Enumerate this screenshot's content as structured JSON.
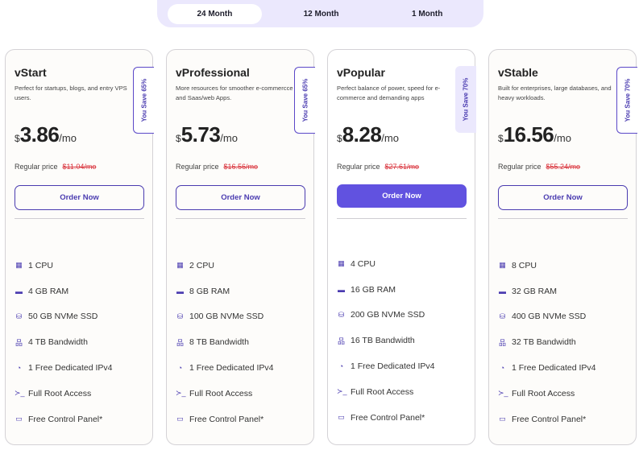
{
  "tabs": [
    "24 Month",
    "12 Month",
    "1 Month"
  ],
  "currency": "$",
  "per": "/mo",
  "regular_label": "Regular price",
  "plans": [
    {
      "name": "vStart",
      "desc": "Perfect for startups, blogs, and entry VPS users.",
      "badge": "You Save 65%",
      "price": "3.86",
      "regular": "$11.04/mo",
      "button": "Order Now",
      "features": [
        "1 CPU",
        "4 GB RAM",
        "50 GB NVMe SSD",
        "4 TB Bandwidth",
        "1 Free Dedicated IPv4",
        "Full Root Access",
        "Free Control Panel*"
      ]
    },
    {
      "name": "vProfessional",
      "desc": "More resources for smoother e-commercce and Saas/web Apps.",
      "badge": "You Save 65%",
      "price": "5.73",
      "regular": "$16.56/mo",
      "button": "Order Now",
      "features": [
        "2 CPU",
        "8 GB RAM",
        "100 GB NVMe SSD",
        "8 TB Bandwidth",
        "1 Free Dedicated IPv4",
        "Full Root Access",
        "Free Control Panel*"
      ]
    },
    {
      "name": "vPopular",
      "desc": "Perfect balance of power, speed for e-commerce and demanding apps",
      "badge": "You Save 70%",
      "price": "8.28",
      "regular": "$27.61/mo",
      "button": "Order Now",
      "features": [
        "4 CPU",
        "16 GB RAM",
        "200 GB NVMe SSD",
        "16 TB Bandwidth",
        "1 Free Dedicated IPv4",
        "Full Root Access",
        "Free Control Panel*"
      ]
    },
    {
      "name": "vStable",
      "desc": "Built for enterprises, large databases, and heavy workloads.",
      "badge": "You Save 70%",
      "price": "16.56",
      "regular": "$55.24/mo",
      "button": "Order Now",
      "features": [
        "8 CPU",
        "32 GB RAM",
        "400 GB NVMe SSD",
        "32 TB Bandwidth",
        "1 Free Dedicated IPv4",
        "Full Root Access",
        "Free Control Panel*"
      ]
    }
  ],
  "feature_icons": [
    "cpu-icon",
    "ram-icon",
    "storage-icon",
    "network-icon",
    "ip-icon",
    "terminal-icon",
    "monitor-icon"
  ],
  "colors": {
    "accent": "#4a3bb0",
    "button_fill": "#6152e0",
    "strike": "#d9313a",
    "toggle_bg": "#ebe8fd"
  }
}
